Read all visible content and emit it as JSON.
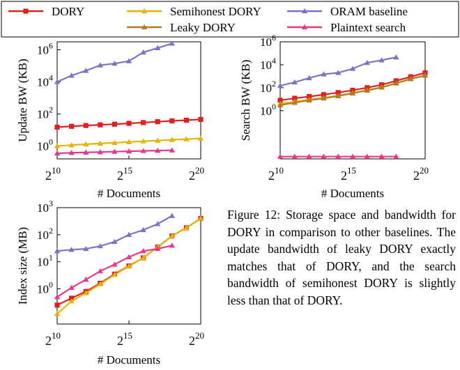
{
  "legend": [
    {
      "name": "DORY",
      "color": "#e02020",
      "marker": "square"
    },
    {
      "name": "Semihonest DORY",
      "color": "#e6b400",
      "marker": "triangle"
    },
    {
      "name": "ORAM baseline",
      "color": "#7b73c4",
      "marker": "triangle"
    },
    {
      "name": "Leaky DORY",
      "color": "#b07a20",
      "marker": "triangle"
    },
    {
      "name": "Plaintext search",
      "color": "#e8388a",
      "marker": "triangle"
    }
  ],
  "caption": "Figure 12: Storage space and bandwidth for DORY in comparison to other baselines. The update bandwidth of leaky DORY exactly matches that of DORY, and the search bandwidth of semihonest DORY is slightly less than that of DORY.",
  "chart_data": [
    {
      "type": "line",
      "xlabel": "# Documents",
      "ylabel": "Update BW (KB)",
      "xscale": "log2",
      "yscale": "log10",
      "xlim": [
        10,
        20
      ],
      "ylim": [
        -0.8,
        6.5
      ],
      "xticks": [
        10,
        15,
        20
      ],
      "yticks": [
        0,
        2,
        4,
        6
      ],
      "series": [
        {
          "name": "DORY",
          "x": [
            10,
            11,
            12,
            13,
            14,
            15,
            16,
            17,
            18,
            19,
            20
          ],
          "y": [
            15,
            17,
            19,
            21,
            23,
            26,
            29,
            33,
            37,
            41,
            46
          ]
        },
        {
          "name": "Semihonest DORY",
          "x": [
            10,
            11,
            12,
            13,
            14,
            15,
            16,
            17,
            18,
            19,
            20
          ],
          "y": [
            1.0,
            1.15,
            1.3,
            1.45,
            1.6,
            1.8,
            2.0,
            2.2,
            2.45,
            2.7,
            3.0
          ]
        },
        {
          "name": "ORAM baseline",
          "x": [
            10,
            11,
            12,
            13,
            14,
            15,
            16,
            17,
            18
          ],
          "y": [
            10000,
            25000,
            50000,
            110000,
            140000,
            200000,
            700000,
            1300000,
            2500000
          ]
        },
        {
          "name": "Plaintext search",
          "x": [
            10,
            11,
            12,
            13,
            14,
            15,
            16,
            17,
            18
          ],
          "y": [
            0.35,
            0.38,
            0.4,
            0.42,
            0.45,
            0.47,
            0.5,
            0.52,
            0.55
          ]
        }
      ]
    },
    {
      "type": "line",
      "xlabel": "# Documents",
      "ylabel": "Search BW (KB)",
      "xscale": "log2",
      "yscale": "log10",
      "xlim": [
        10,
        20
      ],
      "ylim": [
        -4.2,
        6.0
      ],
      "xticks": [
        10,
        15,
        20
      ],
      "yticks": [
        0,
        2,
        4,
        6
      ],
      "series": [
        {
          "name": "DORY",
          "x": [
            10,
            11,
            12,
            13,
            14,
            15,
            16,
            17,
            18,
            19,
            20
          ],
          "y": [
            8,
            12,
            17,
            25,
            38,
            60,
            100,
            180,
            400,
            900,
            2000
          ]
        },
        {
          "name": "Semihonest DORY",
          "x": [
            10,
            11,
            12,
            13,
            14,
            15,
            16,
            17,
            18,
            19,
            20
          ],
          "y": [
            4,
            6,
            9,
            13,
            20,
            35,
            60,
            110,
            250,
            600,
            1200
          ]
        },
        {
          "name": "Leaky DORY",
          "x": [
            10,
            11,
            12,
            13,
            14,
            15,
            16,
            17,
            18,
            19,
            20
          ],
          "y": [
            3,
            5,
            8,
            12,
            19,
            33,
            58,
            105,
            240,
            580,
            1150
          ]
        },
        {
          "name": "ORAM baseline",
          "x": [
            10,
            11,
            12,
            13,
            14,
            15,
            16,
            17,
            18
          ],
          "y": [
            150,
            300,
            700,
            1500,
            2000,
            4500,
            15000,
            25000,
            45000
          ]
        },
        {
          "name": "Plaintext search",
          "x": [
            10,
            11,
            12,
            13,
            14,
            15,
            16,
            17,
            18
          ],
          "y": [
            0.0001,
            0.0001,
            0.0001,
            0.0001,
            0.0001,
            0.0001,
            0.0001,
            0.0001,
            0.0001
          ]
        }
      ]
    },
    {
      "type": "line",
      "xlabel": "# Documents",
      "ylabel": "Index size (MB)",
      "xscale": "log2",
      "yscale": "log10",
      "xlim": [
        10,
        20
      ],
      "ylim": [
        -1.3,
        3.0
      ],
      "xticks": [
        10,
        15,
        20
      ],
      "yticks": [
        0,
        1,
        2,
        3
      ],
      "series": [
        {
          "name": "DORY",
          "x": [
            10,
            11,
            12,
            13,
            14,
            15,
            16,
            17,
            18,
            19,
            20
          ],
          "y": [
            0.25,
            0.45,
            0.8,
            1.6,
            3.5,
            7,
            14,
            35,
            90,
            180,
            400
          ]
        },
        {
          "name": "Semihonest DORY",
          "x": [
            10,
            11,
            12,
            13,
            14,
            15,
            16,
            17,
            18,
            19,
            20
          ],
          "y": [
            0.12,
            0.35,
            0.7,
            1.5,
            3.3,
            6.8,
            14,
            35,
            90,
            180,
            400
          ]
        },
        {
          "name": "ORAM baseline",
          "x": [
            10,
            11,
            12,
            13,
            14,
            15,
            16,
            17,
            18
          ],
          "y": [
            25,
            28,
            30,
            38,
            55,
            100,
            150,
            250,
            500
          ]
        },
        {
          "name": "Plaintext search",
          "x": [
            10,
            11,
            12,
            13,
            14,
            15,
            16,
            17,
            18
          ],
          "y": [
            0.5,
            1.1,
            2.2,
            4.5,
            8,
            15,
            25,
            30,
            40
          ]
        }
      ]
    }
  ]
}
